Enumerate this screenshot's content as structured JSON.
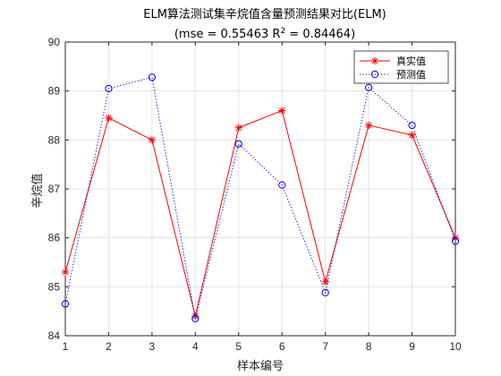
{
  "chart_data": {
    "type": "line",
    "title": "ELM算法测试集辛烷值含量预测结果对比(ELM)",
    "subtitle": {
      "prefix": "(mse = 0.55463 R",
      "superscript": "2",
      "suffix": " = 0.84464)"
    },
    "xlabel": "样本编号",
    "ylabel": "辛烷值",
    "xlim": [
      1,
      10
    ],
    "ylim": [
      84,
      90
    ],
    "xticks": [
      1,
      2,
      3,
      4,
      5,
      6,
      7,
      8,
      9,
      10
    ],
    "yticks": [
      84,
      85,
      86,
      87,
      88,
      89,
      90
    ],
    "grid": true,
    "legend_position": "top-right",
    "x": [
      1,
      2,
      3,
      4,
      5,
      6,
      7,
      8,
      9,
      10
    ],
    "series": [
      {
        "name": "真实值",
        "values": [
          85.3,
          88.45,
          88.0,
          84.4,
          88.25,
          88.6,
          85.1,
          88.3,
          88.1,
          86.0
        ],
        "color": "#ff0000",
        "line_style": "solid",
        "marker": "asterisk"
      },
      {
        "name": "预测值",
        "values": [
          84.65,
          89.05,
          89.28,
          84.35,
          87.92,
          87.08,
          84.88,
          89.07,
          88.3,
          85.93
        ],
        "color": "#0000ff",
        "line_style": "dotted",
        "marker": "circle"
      }
    ]
  }
}
